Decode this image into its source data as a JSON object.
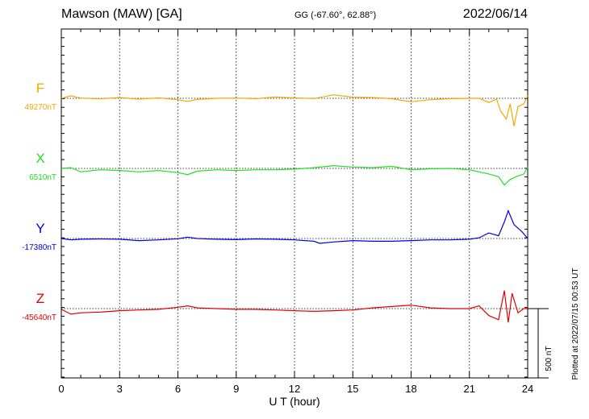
{
  "header": {
    "station": "Mawson (MAW)  [GA]",
    "coords": "GG (-67.60°,  62.88°)",
    "date": "2022/06/14"
  },
  "plotted_note": "Plotted at 2022/07/15 00:53 UT",
  "scale_label": "500 nT",
  "chart_data": {
    "type": "line",
    "title": "Mawson (MAW)  [GA]",
    "xlabel": "U T (hour)",
    "xlim": [
      0,
      24
    ],
    "xticks": [
      0,
      3,
      6,
      9,
      12,
      15,
      18,
      21,
      24
    ],
    "grid": "vertical dotted lines every 3 hours",
    "scale_bar_nT": 500,
    "series": [
      {
        "name": "F",
        "baseline_label": "49270nT",
        "baseline_nT": 49270,
        "color": "#f5a800",
        "points": [
          [
            0,
            0
          ],
          [
            0.5,
            18
          ],
          [
            1,
            2
          ],
          [
            2,
            -4
          ],
          [
            3,
            5
          ],
          [
            4,
            -6
          ],
          [
            5,
            3
          ],
          [
            6,
            -10
          ],
          [
            6.5,
            -22
          ],
          [
            7,
            -8
          ],
          [
            8,
            0
          ],
          [
            9,
            2
          ],
          [
            10,
            -3
          ],
          [
            11,
            10
          ],
          [
            12,
            3
          ],
          [
            13,
            -2
          ],
          [
            14,
            25
          ],
          [
            15,
            8
          ],
          [
            16,
            6
          ],
          [
            17,
            -3
          ],
          [
            18,
            -25
          ],
          [
            19,
            -10
          ],
          [
            20,
            -3
          ],
          [
            21,
            0
          ],
          [
            21.5,
            0
          ],
          [
            22,
            -30
          ],
          [
            22.4,
            -5
          ],
          [
            22.6,
            -90
          ],
          [
            22.9,
            -150
          ],
          [
            23.1,
            -40
          ],
          [
            23.3,
            -200
          ],
          [
            23.5,
            -60
          ],
          [
            23.8,
            -40
          ],
          [
            24,
            20
          ]
        ]
      },
      {
        "name": "X",
        "baseline_label": "6510nT",
        "baseline_nT": 6510,
        "color": "#22e022",
        "points": [
          [
            0,
            0
          ],
          [
            0.5,
            5
          ],
          [
            1,
            -25
          ],
          [
            2,
            -10
          ],
          [
            3,
            -15
          ],
          [
            4,
            -25
          ],
          [
            5,
            -15
          ],
          [
            6,
            -30
          ],
          [
            6.5,
            -45
          ],
          [
            7,
            -20
          ],
          [
            8,
            -10
          ],
          [
            9,
            -15
          ],
          [
            10,
            -10
          ],
          [
            11,
            -10
          ],
          [
            12,
            -5
          ],
          [
            13,
            5
          ],
          [
            14,
            20
          ],
          [
            15,
            10
          ],
          [
            16,
            5
          ],
          [
            17,
            15
          ],
          [
            18,
            -10
          ],
          [
            19,
            -3
          ],
          [
            20,
            0
          ],
          [
            21,
            -10
          ],
          [
            21.5,
            -25
          ],
          [
            22,
            -40
          ],
          [
            22.5,
            -60
          ],
          [
            22.8,
            -120
          ],
          [
            23.1,
            -80
          ],
          [
            23.4,
            -60
          ],
          [
            23.8,
            -40
          ],
          [
            24,
            10
          ]
        ]
      },
      {
        "name": "Y",
        "baseline_label": "-17380nT",
        "baseline_nT": -17380,
        "color": "#0000e0",
        "points": [
          [
            0,
            0
          ],
          [
            0.5,
            -10
          ],
          [
            1,
            -5
          ],
          [
            2,
            -3
          ],
          [
            3,
            -5
          ],
          [
            4,
            -15
          ],
          [
            5,
            -10
          ],
          [
            6,
            -2
          ],
          [
            6.5,
            10
          ],
          [
            7,
            0
          ],
          [
            8,
            -5
          ],
          [
            9,
            -8
          ],
          [
            10,
            -3
          ],
          [
            11,
            -5
          ],
          [
            12,
            -10
          ],
          [
            13,
            -20
          ],
          [
            13.3,
            -35
          ],
          [
            14,
            -25
          ],
          [
            15,
            -15
          ],
          [
            16,
            -20
          ],
          [
            17,
            -20
          ],
          [
            18,
            -15
          ],
          [
            19,
            -10
          ],
          [
            20,
            -10
          ],
          [
            21,
            -5
          ],
          [
            21.5,
            5
          ],
          [
            22,
            40
          ],
          [
            22.5,
            20
          ],
          [
            22.8,
            120
          ],
          [
            23,
            200
          ],
          [
            23.3,
            100
          ],
          [
            23.7,
            50
          ],
          [
            24,
            0
          ]
        ]
      },
      {
        "name": "Z",
        "baseline_label": "-45640nT",
        "baseline_nT": -45640,
        "color": "#e00000",
        "points": [
          [
            0,
            -5
          ],
          [
            0.5,
            -40
          ],
          [
            1,
            -30
          ],
          [
            2,
            -25
          ],
          [
            3,
            -15
          ],
          [
            4,
            -10
          ],
          [
            5,
            -5
          ],
          [
            6,
            10
          ],
          [
            6.5,
            20
          ],
          [
            7,
            5
          ],
          [
            8,
            0
          ],
          [
            9,
            -5
          ],
          [
            10,
            -5
          ],
          [
            11,
            -10
          ],
          [
            12,
            -15
          ],
          [
            13,
            -20
          ],
          [
            14,
            -15
          ],
          [
            15,
            -10
          ],
          [
            16,
            5
          ],
          [
            17,
            15
          ],
          [
            18,
            25
          ],
          [
            19,
            5
          ],
          [
            20,
            0
          ],
          [
            21,
            0
          ],
          [
            21.5,
            20
          ],
          [
            22,
            -50
          ],
          [
            22.5,
            -80
          ],
          [
            22.8,
            130
          ],
          [
            23,
            -100
          ],
          [
            23.2,
            110
          ],
          [
            23.5,
            -30
          ],
          [
            23.8,
            0
          ],
          [
            24,
            0
          ]
        ]
      }
    ]
  }
}
